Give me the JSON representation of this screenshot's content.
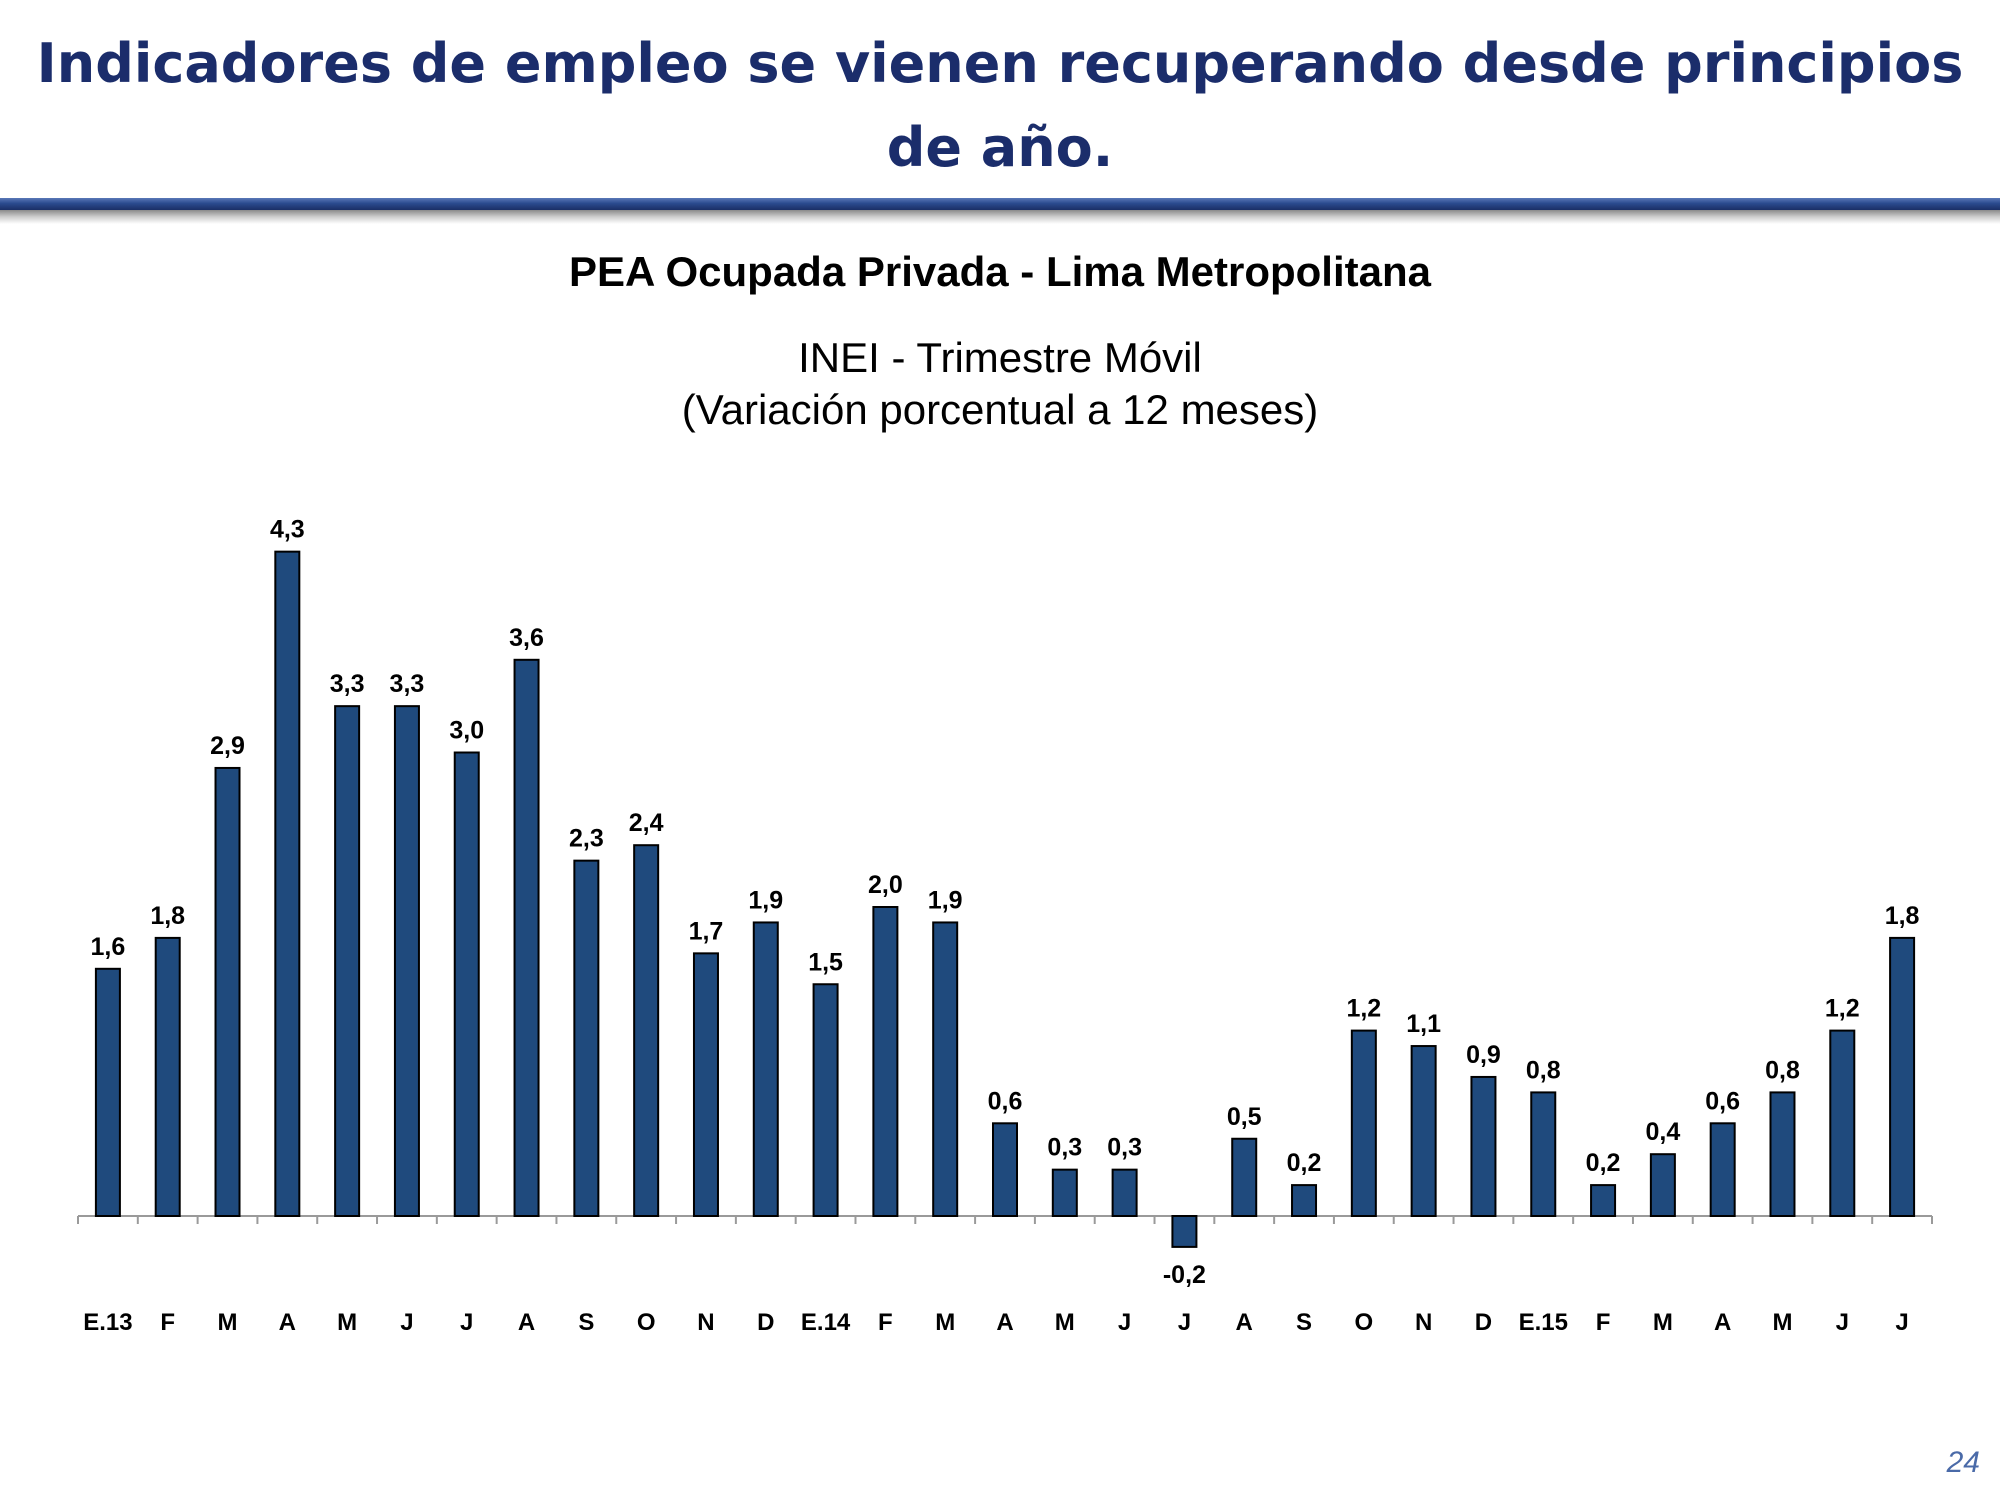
{
  "slide": {
    "title": "Indicadores de empleo se vienen recuperando desde principios de año.",
    "page_number": "24"
  },
  "colors": {
    "title": "#1b2d6b",
    "bar_fill": "#1f4a7d",
    "bar_stroke": "#000000",
    "axis": "#9a9a9a",
    "rule": "#2a4a8e"
  },
  "chart_data": {
    "type": "bar",
    "title": "PEA Ocupada Privada - Lima Metropolitana",
    "subtitle": [
      "INEI - Trimestre Móvil",
      "(Variación porcentual a 12 meses)"
    ],
    "xlabel": "",
    "ylabel": "",
    "ylim": [
      -0.5,
      4.5
    ],
    "grid": false,
    "legend": "none",
    "categories": [
      "E.13",
      "F",
      "M",
      "A",
      "M",
      "J",
      "J",
      "A",
      "S",
      "O",
      "N",
      "D",
      "E.14",
      "F",
      "M",
      "A",
      "M",
      "J",
      "J",
      "A",
      "S",
      "O",
      "N",
      "D",
      "E.15",
      "F",
      "M",
      "A",
      "M",
      "J",
      "J"
    ],
    "values": [
      1.6,
      1.8,
      2.9,
      4.3,
      3.3,
      3.3,
      3.0,
      3.6,
      2.3,
      2.4,
      1.7,
      1.9,
      1.5,
      2.0,
      1.9,
      0.6,
      0.3,
      0.3,
      -0.2,
      0.5,
      0.2,
      1.2,
      1.1,
      0.9,
      0.8,
      0.2,
      0.4,
      0.6,
      0.8,
      1.2,
      1.8
    ],
    "value_labels": [
      "1,6",
      "1,8",
      "2,9",
      "4,3",
      "3,3",
      "3,3",
      "3,0",
      "3,6",
      "2,3",
      "2,4",
      "1,7",
      "1,9",
      "1,5",
      "2,0",
      "1,9",
      "0,6",
      "0,3",
      "0,3",
      "-0,2",
      "0,5",
      "0,2",
      "1,2",
      "1,1",
      "0,9",
      "0,8",
      "0,2",
      "0,4",
      "0,6",
      "0,8",
      "1,2",
      "1,8"
    ]
  }
}
